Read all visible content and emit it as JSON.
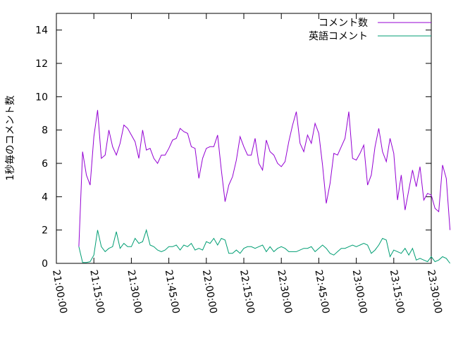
{
  "chart_data": {
    "type": "line",
    "ylabel": "1秒毎のコメント数",
    "ylim": [
      0,
      15
    ],
    "y_ticks": [
      0,
      2,
      4,
      6,
      8,
      10,
      12,
      14
    ],
    "x_ticks": [
      "21:00:00",
      "21:15:00",
      "21:30:00",
      "21:45:00",
      "22:00:00",
      "22:15:00",
      "22:30:00",
      "22:45:00",
      "23:00:00",
      "23:15:00",
      "23:30:00"
    ],
    "xlim_minutes": [
      0,
      150
    ],
    "sample_interval_minutes": 1.5,
    "grid": false,
    "legend_position": "top-right",
    "series": [
      {
        "name": "コメント数",
        "color": "#9400d3",
        "values": [
          1.0,
          6.7,
          5.3,
          4.7,
          7.6,
          9.2,
          6.3,
          6.5,
          8.0,
          7.0,
          6.5,
          7.2,
          8.3,
          8.1,
          7.7,
          7.3,
          6.3,
          8.0,
          6.8,
          6.9,
          6.3,
          6.0,
          6.5,
          6.5,
          6.9,
          7.4,
          7.5,
          8.1,
          7.9,
          7.8,
          7.0,
          6.9,
          5.1,
          6.3,
          6.9,
          7.0,
          7.0,
          7.7,
          5.6,
          3.7,
          4.7,
          5.2,
          6.2,
          7.6,
          7.0,
          6.5,
          6.5,
          7.5,
          6.0,
          5.6,
          7.4,
          6.7,
          6.5,
          6.0,
          5.8,
          6.1,
          7.3,
          8.3,
          9.1,
          7.2,
          6.7,
          7.7,
          7.2,
          8.4,
          7.8,
          5.9,
          3.6,
          4.8,
          6.6,
          6.5,
          7.0,
          7.5,
          9.1,
          6.3,
          6.2,
          6.6,
          7.1,
          4.7,
          5.3,
          7.0,
          8.1,
          6.7,
          6.1,
          7.5,
          6.6,
          3.8,
          5.3,
          3.2,
          4.4,
          5.6,
          4.6,
          5.8,
          3.8,
          4.2,
          4.1,
          3.3,
          3.1,
          5.9,
          5.1,
          2.0
        ]
      },
      {
        "name": "英語コメント",
        "color": "#009e73",
        "values": [
          1.0,
          0.05,
          0.05,
          0.1,
          0.5,
          2.0,
          1.0,
          0.7,
          0.9,
          1.0,
          1.9,
          0.9,
          1.2,
          1.0,
          1.0,
          1.5,
          1.2,
          1.3,
          2.0,
          1.1,
          1.0,
          0.8,
          0.7,
          0.8,
          1.0,
          1.0,
          1.1,
          0.8,
          1.1,
          1.0,
          1.2,
          0.8,
          0.9,
          0.8,
          1.3,
          1.2,
          1.5,
          1.1,
          1.5,
          1.4,
          0.6,
          0.6,
          0.8,
          0.6,
          0.9,
          1.0,
          1.0,
          0.9,
          1.0,
          1.1,
          0.7,
          1.0,
          0.7,
          0.9,
          1.0,
          0.9,
          0.7,
          0.7,
          0.7,
          0.8,
          0.9,
          0.9,
          1.0,
          0.7,
          0.9,
          1.1,
          0.9,
          0.6,
          0.5,
          0.7,
          0.9,
          0.9,
          1.0,
          1.1,
          1.0,
          1.1,
          1.2,
          1.1,
          0.6,
          0.8,
          1.1,
          1.5,
          1.4,
          0.4,
          0.8,
          0.7,
          0.6,
          0.9,
          0.5,
          0.9,
          0.2,
          0.3,
          0.2,
          0.1,
          0.4,
          0.1,
          0.2,
          0.4,
          0.3,
          0.0
        ]
      }
    ]
  }
}
